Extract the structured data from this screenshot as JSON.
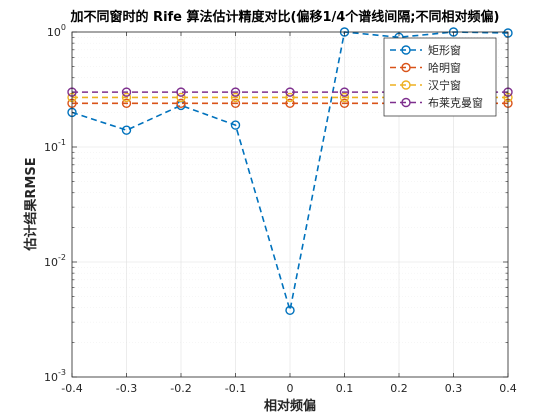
{
  "chart_data": {
    "type": "line",
    "title": "加不同窗时的 Rife 算法估计精度对比(偏移1/4个谱线间隔;不同相对频偏)",
    "xlabel": "相对频偏",
    "ylabel": "估计结果RMSE",
    "yscale": "log",
    "xlim": [
      -0.4,
      0.4
    ],
    "ylim": [
      0.001,
      1
    ],
    "x_ticks": [
      "-0.4",
      "-0.3",
      "-0.2",
      "-0.1",
      "0",
      "0.1",
      "0.2",
      "0.3",
      "0.4"
    ],
    "y_ticks": [
      "10^-3",
      "10^-2",
      "10^-1",
      "10^0"
    ],
    "grid": true,
    "legend_position": "top-right",
    "x": [
      -0.4,
      -0.3,
      -0.2,
      -0.1,
      0,
      0.1,
      0.2,
      0.3,
      0.4
    ],
    "series": [
      {
        "name": "矩形窗",
        "color": "#0072BD",
        "marker": "circle",
        "line": "dashed",
        "values": [
          0.2,
          0.14,
          0.23,
          0.155,
          0.0038,
          1.0,
          0.9,
          1.0,
          0.98
        ]
      },
      {
        "name": "哈明窗",
        "color": "#D95319",
        "marker": "circle",
        "line": "dashed",
        "values": [
          0.24,
          0.24,
          0.24,
          0.24,
          0.24,
          0.24,
          0.24,
          0.24,
          0.24
        ]
      },
      {
        "name": "汉宁窗",
        "color": "#EDB120",
        "marker": "circle",
        "line": "dashed",
        "values": [
          0.27,
          0.27,
          0.27,
          0.27,
          0.27,
          0.27,
          0.27,
          0.27,
          0.27
        ]
      },
      {
        "name": "布莱克曼窗",
        "color": "#7E2F8E",
        "marker": "circle",
        "line": "dashed",
        "values": [
          0.3,
          0.3,
          0.3,
          0.3,
          0.3,
          0.3,
          0.3,
          0.3,
          0.3
        ]
      }
    ]
  }
}
